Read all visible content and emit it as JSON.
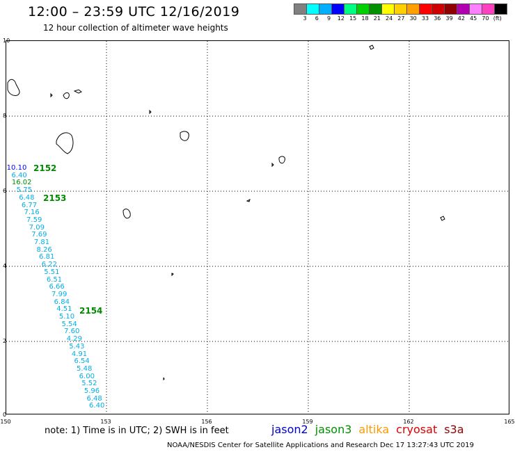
{
  "header": {
    "title": "12:00 – 23:59 UTC 12/16/2019",
    "subtitle": "12 hour collection of altimeter wave heights"
  },
  "colorbar": {
    "colors": [
      "#808080",
      "#00ffff",
      "#00b0ff",
      "#0000ff",
      "#00ff80",
      "#00d000",
      "#009000",
      "#ffff00",
      "#ffd000",
      "#ffa000",
      "#ff0000",
      "#d00000",
      "#900000",
      "#b000b0",
      "#ff80ff",
      "#ff40c0",
      "#000000"
    ],
    "labels": [
      "3",
      "6",
      "9",
      "12",
      "15",
      "18",
      "21",
      "24",
      "27",
      "30",
      "33",
      "36",
      "39",
      "42",
      "45",
      "70",
      "(ft)"
    ]
  },
  "axes": {
    "y_ticks": [
      "10",
      "8",
      "6",
      "4",
      "2",
      "0"
    ],
    "x_ticks": [
      "150",
      "153",
      "156",
      "159",
      "162",
      "165"
    ]
  },
  "swh_readings": [
    {
      "v": "10.10",
      "color": "#0000ff"
    },
    {
      "v": "6.40",
      "color": "#00aee8"
    },
    {
      "v": "16.02",
      "color": "#009000"
    },
    {
      "v": "5.75",
      "color": "#00aee8"
    },
    {
      "v": "6.48",
      "color": "#00aee8"
    },
    {
      "v": "6.77",
      "color": "#00aee8"
    },
    {
      "v": "7.16",
      "color": "#00aee8"
    },
    {
      "v": "7.59",
      "color": "#00aee8"
    },
    {
      "v": "7.09",
      "color": "#00aee8"
    },
    {
      "v": "7.69",
      "color": "#00aee8"
    },
    {
      "v": "7.81",
      "color": "#00aee8"
    },
    {
      "v": "8.26",
      "color": "#00aee8"
    },
    {
      "v": "6.81",
      "color": "#00aee8"
    },
    {
      "v": "6.22",
      "color": "#00aee8"
    },
    {
      "v": "5.51",
      "color": "#00aee8"
    },
    {
      "v": "6.51",
      "color": "#00aee8"
    },
    {
      "v": "6.66",
      "color": "#00aee8"
    },
    {
      "v": "7.99",
      "color": "#00aee8"
    },
    {
      "v": "6.84",
      "color": "#00aee8"
    },
    {
      "v": "4.51",
      "color": "#00aee8"
    },
    {
      "v": "5.10",
      "color": "#00aee8"
    },
    {
      "v": "5.54",
      "color": "#00aee8"
    },
    {
      "v": "7.60",
      "color": "#00aee8"
    },
    {
      "v": "4.29",
      "color": "#00aee8"
    },
    {
      "v": "5.43",
      "color": "#00aee8"
    },
    {
      "v": "4.91",
      "color": "#00aee8"
    },
    {
      "v": "6.54",
      "color": "#00aee8"
    },
    {
      "v": "5.48",
      "color": "#00aee8"
    },
    {
      "v": "6.00",
      "color": "#00aee8"
    },
    {
      "v": "5.52",
      "color": "#00aee8"
    },
    {
      "v": "5.96",
      "color": "#00aee8"
    },
    {
      "v": "6.48",
      "color": "#00aee8"
    },
    {
      "v": "6.40",
      "color": "#00aee8"
    }
  ],
  "passes": [
    "2152",
    "2153",
    "2154"
  ],
  "note": "note:  1) Time is in UTC;  2) SWH is in feet",
  "legend": [
    {
      "name": "jason2",
      "color": "#0000d0"
    },
    {
      "name": "jason3",
      "color": "#009000"
    },
    {
      "name": "altika",
      "color": "#ff9900"
    },
    {
      "name": "cryosat",
      "color": "#e00000"
    },
    {
      "name": "s3a",
      "color": "#900000"
    }
  ],
  "footer": "NOAA/NESDIS Center for Satellite Applications and Research     Dec 17 13:27:43 UTC 2019"
}
